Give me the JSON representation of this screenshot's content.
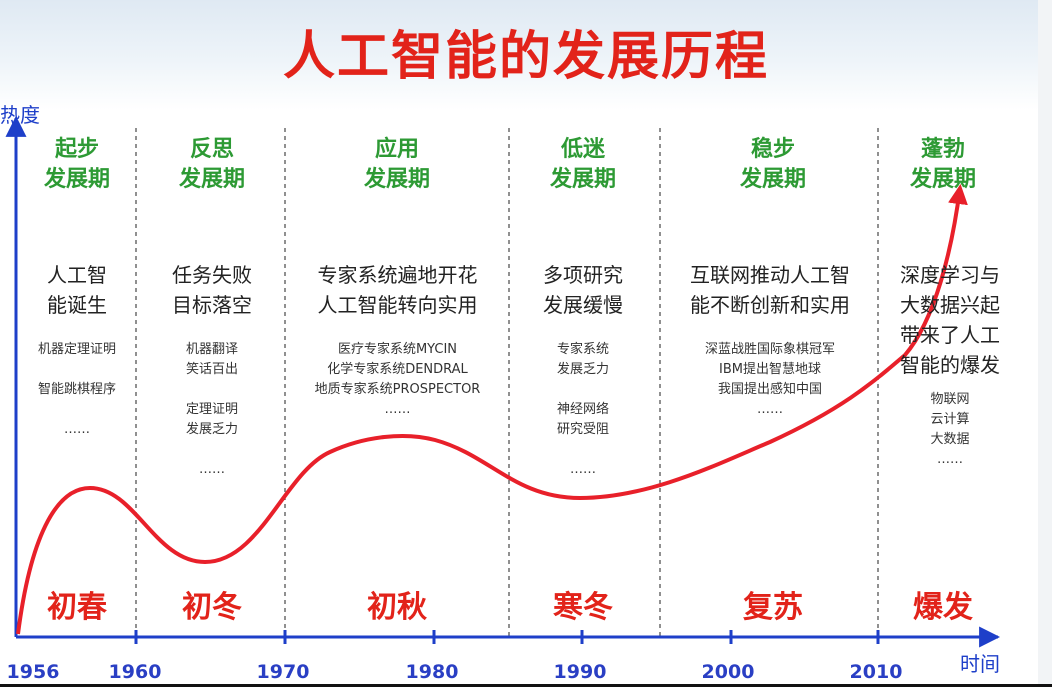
{
  "title": "人工智能的发展历程",
  "axes": {
    "y_label": "热度",
    "x_label": "时间"
  },
  "years": [
    "1956",
    "1960",
    "1970",
    "1980",
    "1990",
    "2000",
    "2010"
  ],
  "phases": [
    {
      "name_line1": "起步",
      "name_line2": "发展期",
      "main": [
        "人工智",
        "能诞生"
      ],
      "details": [
        "机器定理证明",
        "",
        "智能跳棋程序",
        "",
        "……"
      ],
      "season": "初春"
    },
    {
      "name_line1": "反思",
      "name_line2": "发展期",
      "main": [
        "任务失败",
        "目标落空"
      ],
      "details": [
        "机器翻译",
        "笑话百出",
        "",
        "定理证明",
        "发展乏力",
        "",
        "……"
      ],
      "season": "初冬"
    },
    {
      "name_line1": "应用",
      "name_line2": "发展期",
      "main": [
        "专家系统遍地开花",
        "人工智能转向实用"
      ],
      "details": [
        "医疗专家系统MYCIN",
        "化学专家系统DENDRAL",
        "地质专家系统PROSPECTOR",
        "……"
      ],
      "season": "初秋"
    },
    {
      "name_line1": "低迷",
      "name_line2": "发展期",
      "main": [
        "多项研究",
        "发展缓慢"
      ],
      "details": [
        "专家系统",
        "发展乏力",
        "",
        "神经网络",
        "研究受阻",
        "",
        "……"
      ],
      "season": "寒冬"
    },
    {
      "name_line1": "稳步",
      "name_line2": "发展期",
      "main": [
        "互联网推动人工智",
        "能不断创新和实用"
      ],
      "details": [
        "深蓝战胜国际象棋冠军",
        "IBM提出智慧地球",
        "我国提出感知中国",
        "……"
      ],
      "season": "复苏"
    },
    {
      "name_line1": "蓬勃",
      "name_line2": "发展期",
      "main": [
        "深度学习与",
        "大数据兴起",
        "带来了人工",
        "智能的爆发"
      ],
      "details": [
        "物联网",
        "云计算",
        "大数据",
        "……"
      ],
      "season": "爆发"
    }
  ],
  "colors": {
    "title": "#e2231a",
    "axis": "#1e3fc9",
    "phase": "#2d9a34",
    "curve": "#e8202a",
    "season": "#e2231a"
  }
}
